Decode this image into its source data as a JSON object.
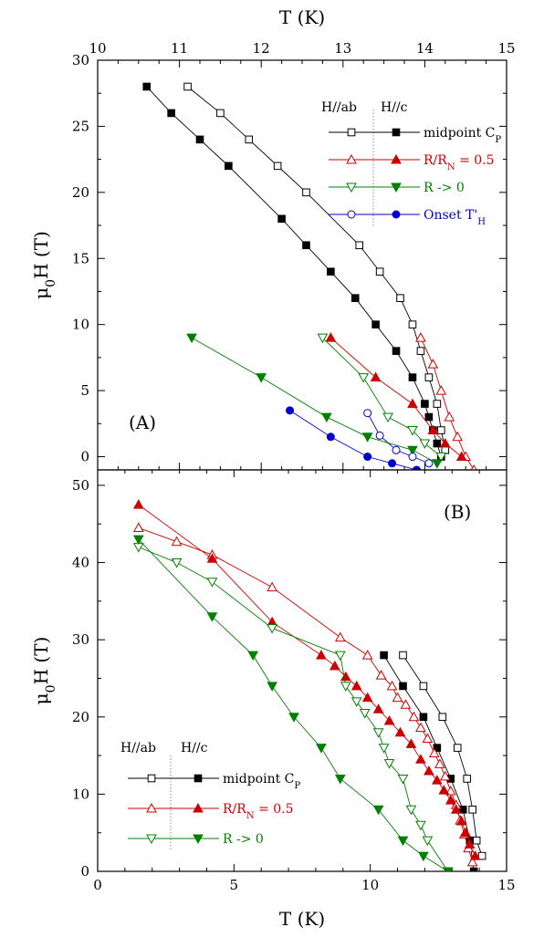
{
  "chart_data": [
    {
      "id": "panel-a",
      "type": "line",
      "panel_label": "(A)",
      "xlabel": "T (K)",
      "ylabel": "μ0H (T)",
      "xlim": [
        10,
        15
      ],
      "ylim": [
        -1,
        30
      ],
      "xticks": [
        "10",
        "11",
        "12",
        "13",
        "14",
        "15"
      ],
      "yticks": [
        "0",
        "5",
        "10",
        "15",
        "20",
        "25",
        "30"
      ],
      "legend": {
        "col_headers": [
          "H//ab",
          "H//c"
        ],
        "entries": [
          "midpoint C_P",
          "R/R_N = 0.5",
          "R -> 0",
          "Onset T'_H"
        ],
        "position": "top-right"
      },
      "series": [
        {
          "name": "midpoint C_P H//ab",
          "color": "#000000",
          "marker": "square",
          "filled": false,
          "x": [
            11.1,
            11.5,
            11.85,
            12.2,
            12.55,
            13.2,
            13.45,
            13.7,
            13.85,
            13.95,
            14.05,
            14.15,
            14.2,
            14.25
          ],
          "y": [
            28,
            26,
            24,
            22,
            20,
            16,
            14,
            12,
            10,
            8,
            6,
            4,
            2,
            0.5
          ]
        },
        {
          "name": "midpoint C_P H//c",
          "color": "#000000",
          "marker": "square",
          "filled": true,
          "x": [
            10.6,
            10.9,
            11.25,
            11.6,
            12.25,
            12.55,
            12.85,
            13.15,
            13.4,
            13.65,
            13.85,
            14.0,
            14.05,
            14.1,
            14.15,
            14.2
          ],
          "y": [
            28,
            26,
            24,
            22,
            18,
            16,
            14,
            12,
            10,
            8,
            6,
            4,
            3,
            2,
            1,
            0
          ]
        },
        {
          "name": "R/R_N = 0.5 H//ab",
          "color": "#cc0000",
          "marker": "triangle-up",
          "filled": false,
          "x": [
            13.95,
            14.1,
            14.2,
            14.3,
            14.4,
            14.5,
            14.6
          ],
          "y": [
            9,
            7,
            5,
            3,
            1.5,
            0,
            -1
          ]
        },
        {
          "name": "R/R_N = 0.5 H//c",
          "color": "#cc0000",
          "marker": "triangle-up",
          "filled": true,
          "x": [
            12.85,
            13.4,
            13.85,
            14.1,
            14.25,
            14.45
          ],
          "y": [
            9,
            6,
            4,
            2,
            1,
            0
          ]
        },
        {
          "name": "R -> 0 H//ab",
          "color": "#008000",
          "marker": "triangle-down",
          "filled": false,
          "x": [
            12.75,
            13.25,
            13.55,
            13.85,
            14.0,
            14.2
          ],
          "y": [
            9,
            6,
            3,
            2,
            1,
            0
          ]
        },
        {
          "name": "R -> 0 H//c",
          "color": "#008000",
          "marker": "triangle-down",
          "filled": true,
          "x": [
            11.15,
            12.0,
            12.8,
            13.3,
            13.85,
            14.15
          ],
          "y": [
            9,
            6,
            3,
            1.5,
            0.5,
            -0.5
          ]
        },
        {
          "name": "Onset T'_H H//ab",
          "color": "#0000cc",
          "marker": "circle",
          "filled": false,
          "x": [
            13.3,
            13.45,
            13.65,
            13.85,
            14.05
          ],
          "y": [
            3.3,
            1.6,
            0.5,
            0,
            -0.5
          ]
        },
        {
          "name": "Onset T'_H H//c",
          "color": "#0000cc",
          "marker": "circle",
          "filled": true,
          "x": [
            12.35,
            12.85,
            13.3,
            13.6,
            13.9
          ],
          "y": [
            3.5,
            1.5,
            0,
            -0.5,
            -1
          ]
        }
      ]
    },
    {
      "id": "panel-b",
      "type": "line",
      "panel_label": "(B)",
      "xlabel": "T (K)",
      "ylabel": "μ0H (T)",
      "xlim": [
        0,
        15
      ],
      "ylim": [
        0,
        52
      ],
      "xticks": [
        "0",
        "5",
        "10",
        "15"
      ],
      "yticks": [
        "0",
        "10",
        "20",
        "30",
        "40",
        "50"
      ],
      "legend": {
        "col_headers": [
          "H//ab",
          "H//c"
        ],
        "entries": [
          "midpoint C_P",
          "R/R_N = 0.5",
          "R -> 0"
        ],
        "position": "bottom-left"
      },
      "series": [
        {
          "name": "midpoint C_P H//ab",
          "color": "#000000",
          "marker": "square",
          "filled": false,
          "x": [
            11.2,
            11.95,
            12.65,
            13.2,
            13.55,
            13.75,
            13.9,
            14.1
          ],
          "y": [
            28,
            24,
            20,
            16,
            12,
            8,
            4,
            2
          ]
        },
        {
          "name": "midpoint C_P H//c",
          "color": "#000000",
          "marker": "square",
          "filled": true,
          "x": [
            10.5,
            11.2,
            11.95,
            12.45,
            12.95,
            13.4,
            13.65,
            13.8
          ],
          "y": [
            28,
            24,
            20,
            16,
            12,
            8,
            4,
            0
          ]
        },
        {
          "name": "R/R_N = 0.5 H//ab",
          "color": "#cc0000",
          "marker": "triangle-up",
          "filled": false,
          "x": [
            1.5,
            2.9,
            4.2,
            6.4,
            8.9,
            9.9,
            10.4,
            10.8,
            11.0,
            11.3,
            11.6,
            11.85,
            12.1,
            12.35,
            12.55,
            12.75,
            12.95,
            13.15,
            13.3,
            13.45,
            13.6,
            13.75
          ],
          "y": [
            44.5,
            42.7,
            41,
            36.8,
            30.3,
            28,
            25.4,
            24,
            22.5,
            21.6,
            20,
            18.6,
            17.2,
            15.3,
            13.9,
            12.3,
            10.4,
            8.6,
            6.6,
            4.8,
            3,
            1.2
          ]
        },
        {
          "name": "R/R_N = 0.5 H//c",
          "color": "#cc0000",
          "marker": "triangle-up",
          "filled": true,
          "x": [
            1.5,
            4.2,
            6.4,
            8.2,
            8.7,
            9.1,
            9.5,
            9.9,
            10.3,
            10.7,
            11.1,
            11.5,
            11.85,
            12.15,
            12.45,
            12.7,
            12.95,
            13.15,
            13.35,
            13.5,
            13.65,
            13.85
          ],
          "y": [
            47.5,
            40.5,
            32.3,
            28,
            26.6,
            25.2,
            24,
            22.5,
            21,
            19.5,
            18,
            16.5,
            14.5,
            13,
            11.8,
            10.5,
            9.2,
            8,
            6.5,
            5,
            3.5,
            2
          ]
        },
        {
          "name": "R -> 0 H//ab",
          "color": "#008000",
          "marker": "triangle-down",
          "filled": false,
          "x": [
            1.5,
            2.9,
            4.2,
            6.4,
            8.9,
            9.1,
            9.5,
            9.8,
            10.3,
            10.5,
            10.7,
            11.2,
            11.5,
            11.85,
            12.1,
            12.85
          ],
          "y": [
            42,
            40,
            37.5,
            31.5,
            28,
            24,
            22,
            20.5,
            18,
            16,
            14,
            12,
            8,
            6,
            4,
            0
          ]
        },
        {
          "name": "R -> 0 H//c",
          "color": "#008000",
          "marker": "triangle-down",
          "filled": true,
          "x": [
            1.5,
            4.2,
            5.7,
            6.4,
            7.2,
            8.2,
            8.9,
            10.3,
            11.2,
            11.95,
            12.85
          ],
          "y": [
            43,
            33,
            28,
            24,
            20,
            16,
            12,
            8,
            4,
            2,
            0
          ]
        }
      ]
    }
  ]
}
